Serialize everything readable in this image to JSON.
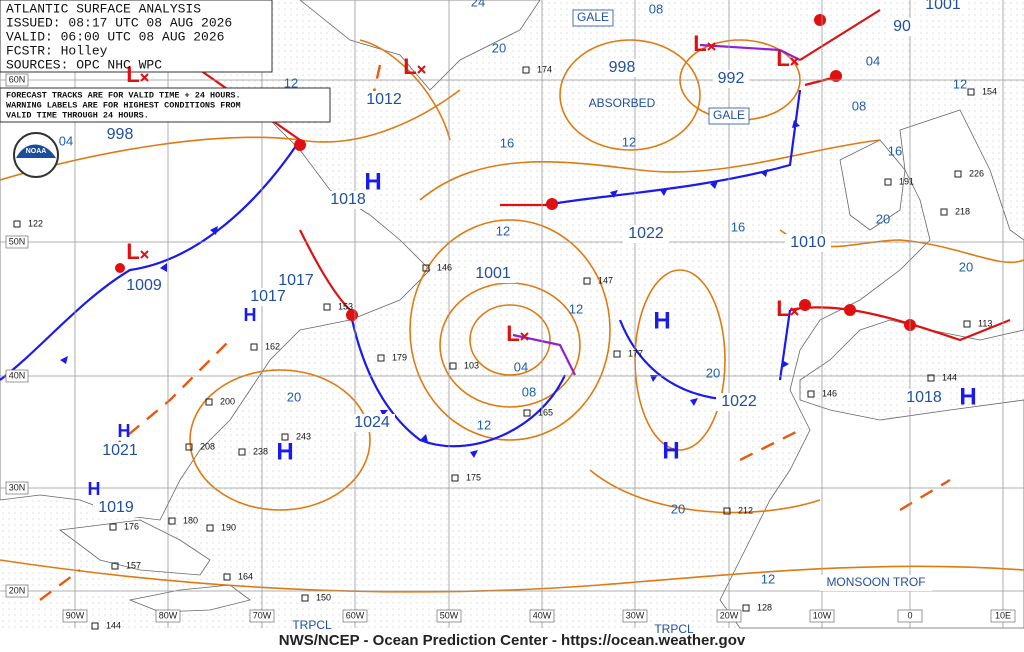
{
  "header": {
    "lines": [
      "ATLANTIC SURFACE ANALYSIS",
      "ISSUED: 08:17 UTC 08 AUG 2026",
      "VALID: 06:00 UTC 08 AUG 2026",
      "FCSTR: Holley",
      "SOURCES: OPC NHC WPC"
    ]
  },
  "notice": {
    "lines": [
      "FORECAST TRACKS ARE FOR VALID TIME + 24 HOURS.",
      "WARNING LABELS ARE FOR HIGHEST CONDITIONS FROM",
      "VALID TIME THROUGH 24 HOURS."
    ]
  },
  "logo": "NOAA",
  "pressures": [
    "998",
    "998",
    "992",
    "1012",
    "1018",
    "1001",
    "1022",
    "1010",
    "1009",
    "1017",
    "1017",
    "1024",
    "1021",
    "1019",
    "1022",
    "1018",
    "1001",
    "90"
  ],
  "lows": [
    "L",
    "L",
    "L",
    "L",
    "L",
    "L",
    "L"
  ],
  "highs": [
    "H",
    "H",
    "H",
    "H",
    "H",
    "H",
    "H",
    "H"
  ],
  "isobar_labels": [
    "24",
    "20",
    "16",
    "12",
    "12",
    "04",
    "08",
    "12",
    "12",
    "16",
    "20",
    "20",
    "12",
    "08",
    "04",
    "08",
    "16",
    "12",
    "20",
    "20",
    "20",
    "12",
    "04"
  ],
  "lat_labels": [
    "60N",
    "50N",
    "40N",
    "30N",
    "20N"
  ],
  "lon_labels": [
    "90W",
    "80W",
    "70W",
    "60W",
    "50W",
    "40W",
    "30W",
    "20W",
    "10W",
    "0",
    "10E"
  ],
  "warnings": [
    "GALE",
    "GALE"
  ],
  "annotations": [
    "ABSORBED",
    "MONSOON TROF",
    "TRPCL",
    "TRPCL"
  ],
  "stations": [
    "174",
    "146",
    "147",
    "177",
    "103",
    "175",
    "165",
    "179",
    "153",
    "162",
    "200",
    "243",
    "208",
    "238",
    "180",
    "176",
    "190",
    "157",
    "164",
    "150",
    "144",
    "122",
    "212",
    "146",
    "113",
    "144",
    "191",
    "226",
    "218",
    "154",
    "128"
  ],
  "footer": "NWS/NCEP - Ocean Prediction Center - https://ocean.weather.gov"
}
